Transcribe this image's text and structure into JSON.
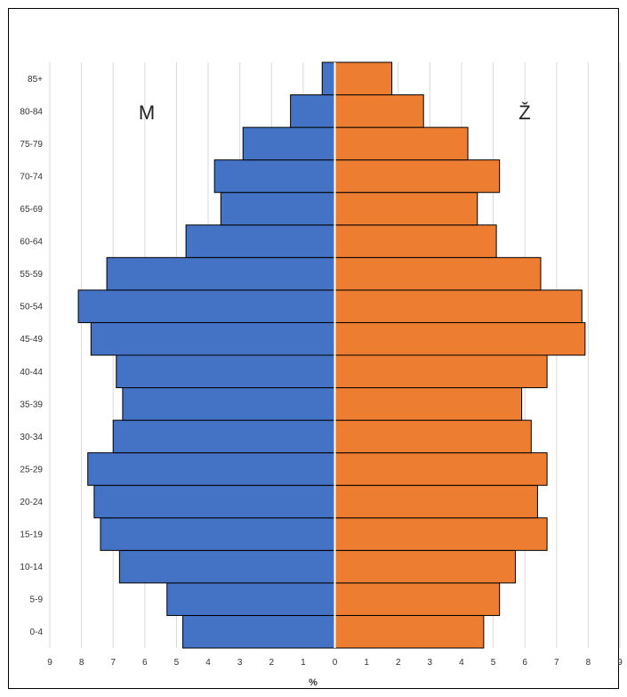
{
  "chart_data": {
    "type": "bar",
    "orientation": "horizontal",
    "layout": "population-pyramid",
    "categories": [
      "0-4",
      "5-9",
      "10-14",
      "15-19",
      "20-24",
      "25-29",
      "30-34",
      "35-39",
      "40-44",
      "45-49",
      "50-54",
      "55-59",
      "60-64",
      "65-69",
      "70-74",
      "75-79",
      "80-84",
      "85+"
    ],
    "series": [
      {
        "name": "M",
        "side": "left",
        "color": "#4472c4",
        "values": [
          4.8,
          5.3,
          6.8,
          7.4,
          7.6,
          7.8,
          7.0,
          6.7,
          6.9,
          7.7,
          8.1,
          7.2,
          4.7,
          3.6,
          3.8,
          2.9,
          1.4,
          0.4
        ]
      },
      {
        "name": "Ž",
        "side": "right",
        "color": "#ed7d31",
        "values": [
          4.7,
          5.2,
          5.7,
          6.7,
          6.4,
          6.7,
          6.2,
          5.9,
          6.7,
          7.9,
          7.8,
          6.5,
          5.1,
          4.5,
          5.2,
          4.2,
          2.8,
          1.8
        ]
      }
    ],
    "xticks": [
      "9",
      "8",
      "7",
      "6",
      "5",
      "4",
      "3",
      "2",
      "1",
      "0",
      "1",
      "2",
      "3",
      "4",
      "5",
      "6",
      "7",
      "8",
      "9"
    ],
    "xlim": [
      -9,
      9
    ],
    "xlabel": "%",
    "ylabel": "",
    "title": "",
    "grid": "vertical",
    "legend": "none"
  }
}
